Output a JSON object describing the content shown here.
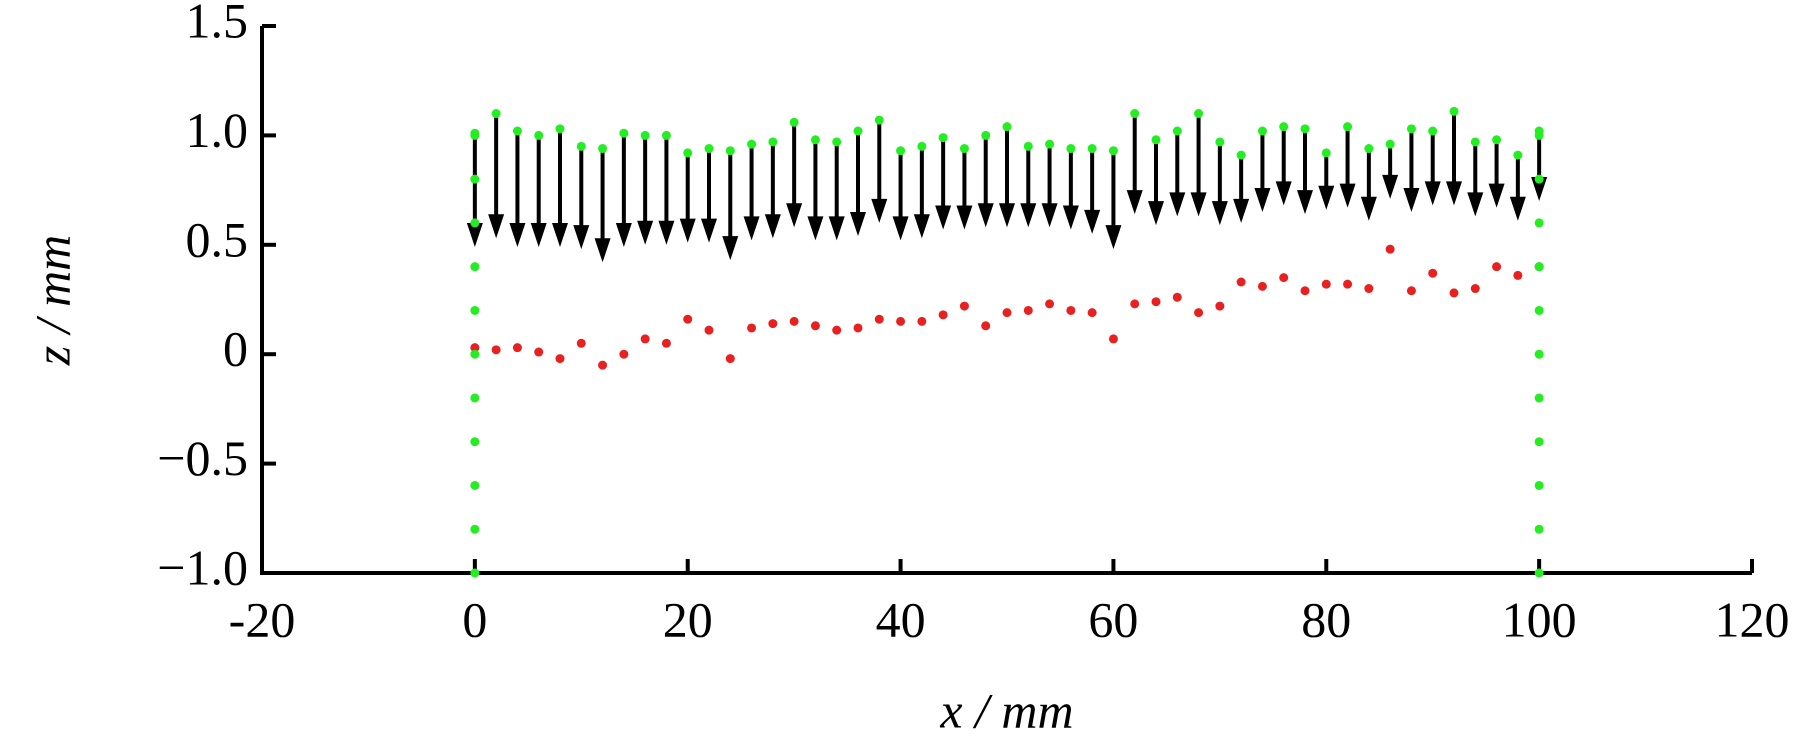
{
  "chart_data": {
    "type": "scatter",
    "xlabel": "x / mm",
    "ylabel": "z / mm",
    "xlim": [
      -20,
      120
    ],
    "xticks": [
      -20,
      0,
      20,
      40,
      60,
      80,
      100,
      120
    ],
    "ylim": [
      -1,
      1.5
    ],
    "yticks": [
      {
        "value": -1,
        "label": "−1.0"
      },
      {
        "value": -0.5,
        "label": "−0.5"
      },
      0,
      0.5,
      {
        "value": 1,
        "label": "1.0"
      },
      1.5
    ],
    "series": [
      {
        "marker": "dot",
        "color": "#22ee22",
        "x": [
          0,
          2,
          4,
          6,
          8,
          10,
          12,
          14,
          16,
          18,
          20,
          22,
          24,
          26,
          28,
          30,
          32,
          34,
          36,
          38,
          40,
          42,
          44,
          46,
          48,
          50,
          52,
          54,
          56,
          58,
          60,
          62,
          64,
          66,
          68,
          70,
          72,
          74,
          76,
          78,
          80,
          82,
          84,
          86,
          88,
          90,
          92,
          94,
          96,
          98,
          100
        ],
        "values": [
          1.01,
          1.1,
          1.02,
          1.0,
          1.03,
          0.95,
          0.94,
          1.01,
          1.0,
          1.0,
          0.92,
          0.94,
          0.93,
          0.96,
          0.97,
          1.06,
          0.98,
          0.97,
          1.02,
          1.07,
          0.93,
          0.95,
          0.99,
          0.94,
          1.0,
          1.04,
          0.95,
          0.96,
          0.94,
          0.94,
          0.93,
          1.1,
          0.98,
          1.02,
          1.1,
          0.97,
          0.91,
          1.02,
          1.04,
          1.03,
          0.92,
          1.04,
          0.94,
          0.96,
          1.03,
          1.02,
          1.11,
          0.97,
          0.98,
          0.91,
          1.02
        ]
      },
      {
        "marker": "arrow",
        "color": "#000000",
        "x": [
          0,
          2,
          4,
          6,
          8,
          10,
          12,
          14,
          16,
          18,
          20,
          22,
          24,
          26,
          28,
          30,
          32,
          34,
          36,
          38,
          40,
          42,
          44,
          46,
          48,
          50,
          52,
          54,
          56,
          58,
          60,
          62,
          64,
          66,
          68,
          70,
          72,
          74,
          76,
          78,
          80,
          82,
          84,
          86,
          88,
          90,
          92,
          94,
          96,
          98,
          100
        ],
        "values": [
          0.49,
          0.53,
          0.49,
          0.49,
          0.49,
          0.48,
          0.42,
          0.49,
          0.5,
          0.5,
          0.51,
          0.51,
          0.43,
          0.52,
          0.53,
          0.58,
          0.52,
          0.52,
          0.54,
          0.6,
          0.52,
          0.53,
          0.57,
          0.57,
          0.58,
          0.58,
          0.58,
          0.58,
          0.57,
          0.55,
          0.48,
          0.64,
          0.59,
          0.63,
          0.63,
          0.59,
          0.6,
          0.65,
          0.68,
          0.64,
          0.66,
          0.67,
          0.61,
          0.71,
          0.65,
          0.68,
          0.68,
          0.63,
          0.67,
          0.61,
          0.7
        ]
      },
      {
        "marker": "dot",
        "color": "#e82020",
        "x": [
          0,
          2,
          4,
          6,
          8,
          10,
          12,
          14,
          16,
          18,
          20,
          22,
          24,
          26,
          28,
          30,
          32,
          34,
          36,
          38,
          40,
          42,
          44,
          46,
          48,
          50,
          52,
          54,
          56,
          58,
          60,
          62,
          64,
          66,
          68,
          70,
          72,
          74,
          76,
          78,
          80,
          82,
          84,
          86,
          88,
          90,
          92,
          94,
          96,
          98,
          100
        ],
        "values": [
          0.03,
          0.02,
          0.03,
          0.01,
          -0.02,
          0.05,
          -0.05,
          0.0,
          0.07,
          0.05,
          0.16,
          0.11,
          -0.02,
          0.12,
          0.14,
          0.15,
          0.13,
          0.11,
          0.12,
          0.16,
          0.15,
          0.15,
          0.18,
          0.22,
          0.13,
          0.19,
          0.2,
          0.23,
          0.2,
          0.19,
          0.07,
          0.23,
          0.24,
          0.26,
          0.19,
          0.22,
          0.33,
          0.31,
          0.35,
          0.29,
          0.32,
          0.32,
          0.3,
          0.48,
          0.29,
          0.37,
          0.28,
          0.3,
          0.4,
          0.36,
          0.4
        ]
      },
      {
        "marker": "dot",
        "color": "#22ee22",
        "x": [
          0,
          0,
          0,
          0,
          0,
          0,
          0,
          0,
          0,
          0,
          0,
          100,
          100,
          100,
          100,
          100,
          100,
          100,
          100,
          100,
          100,
          100
        ],
        "values": [
          -1,
          -0.8,
          -0.6,
          -0.4,
          -0.2,
          0,
          0.2,
          0.4,
          0.6,
          0.8,
          1,
          -1,
          -0.8,
          -0.6,
          -0.4,
          -0.2,
          0,
          0.2,
          0.4,
          0.6,
          0.8,
          1
        ]
      }
    ]
  }
}
